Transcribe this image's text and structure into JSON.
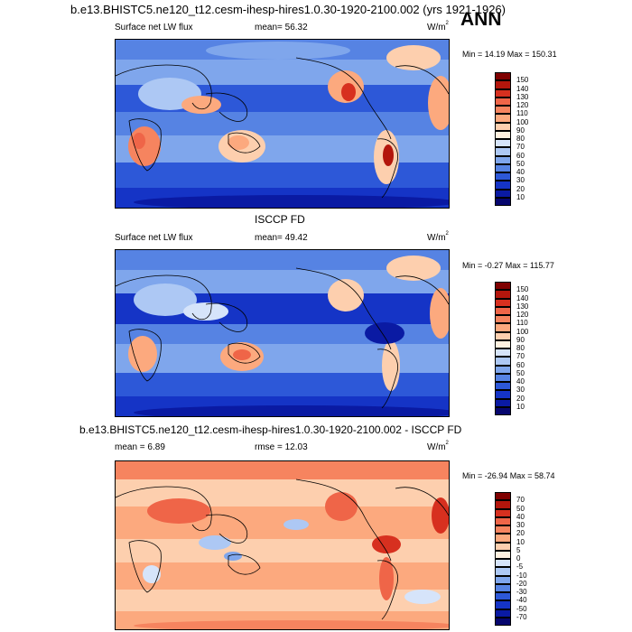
{
  "top_title": "b.e13.BHISTC5.ne120_t12.cesm-ihesp-hires1.0.30-1920-2100.002 (yrs 1921-1926)",
  "season": "ANN",
  "panels": [
    {
      "variable": "Surface net LW flux",
      "stat_text": "mean=  56.32",
      "units": "W/m",
      "units_sup": "2",
      "minmax": "Min =  14.19 Max = 150.31",
      "colorbar": {
        "labels": [
          "150",
          "140",
          "130",
          "120",
          "110",
          "100",
          "90",
          "80",
          "70",
          "60",
          "50",
          "40",
          "30",
          "20",
          "10"
        ],
        "colors": [
          "#7f0000",
          "#b3160c",
          "#d7301f",
          "#ef6548",
          "#f6845f",
          "#fca97e",
          "#fdcfae",
          "#fff1e0",
          "#d6e4fa",
          "#adc8f4",
          "#7fa6ec",
          "#5683e3",
          "#2d58d8",
          "#1534c6",
          "#0a1aa3",
          "#06066e"
        ]
      }
    },
    {
      "heading": "ISCCP FD",
      "variable": "Surface net LW flux",
      "stat_text": "mean=  49.42",
      "units": "W/m",
      "units_sup": "2",
      "minmax": "Min =  -0.27 Max = 115.77",
      "colorbar": {
        "labels": [
          "150",
          "140",
          "130",
          "120",
          "110",
          "100",
          "90",
          "80",
          "70",
          "60",
          "50",
          "40",
          "30",
          "20",
          "10"
        ],
        "colors": [
          "#7f0000",
          "#b3160c",
          "#d7301f",
          "#ef6548",
          "#f6845f",
          "#fca97e",
          "#fdcfae",
          "#fff1e0",
          "#d6e4fa",
          "#adc8f4",
          "#7fa6ec",
          "#5683e3",
          "#2d58d8",
          "#1534c6",
          "#0a1aa3",
          "#06066e"
        ]
      }
    },
    {
      "heading": "b.e13.BHISTC5.ne120_t12.cesm-ihesp-hires1.0.30-1920-2100.002 - ISCCP FD",
      "variable": "mean =  6.89",
      "stat_text": "rmse =  12.03",
      "units": "W/m",
      "units_sup": "2",
      "minmax": "Min = -26.94 Max =  58.74",
      "colorbar": {
        "labels": [
          "70",
          "50",
          "40",
          "30",
          "20",
          "10",
          "5",
          "0",
          "-5",
          "-10",
          "-20",
          "-30",
          "-40",
          "-50",
          "-70"
        ],
        "colors": [
          "#7f0000",
          "#b3160c",
          "#d7301f",
          "#ef6548",
          "#f6845f",
          "#fca97e",
          "#fdcfae",
          "#fff1e0",
          "#d6e4fa",
          "#adc8f4",
          "#7fa6ec",
          "#5683e3",
          "#2d58d8",
          "#1534c6",
          "#0a1aa3",
          "#06066e"
        ]
      }
    }
  ]
}
